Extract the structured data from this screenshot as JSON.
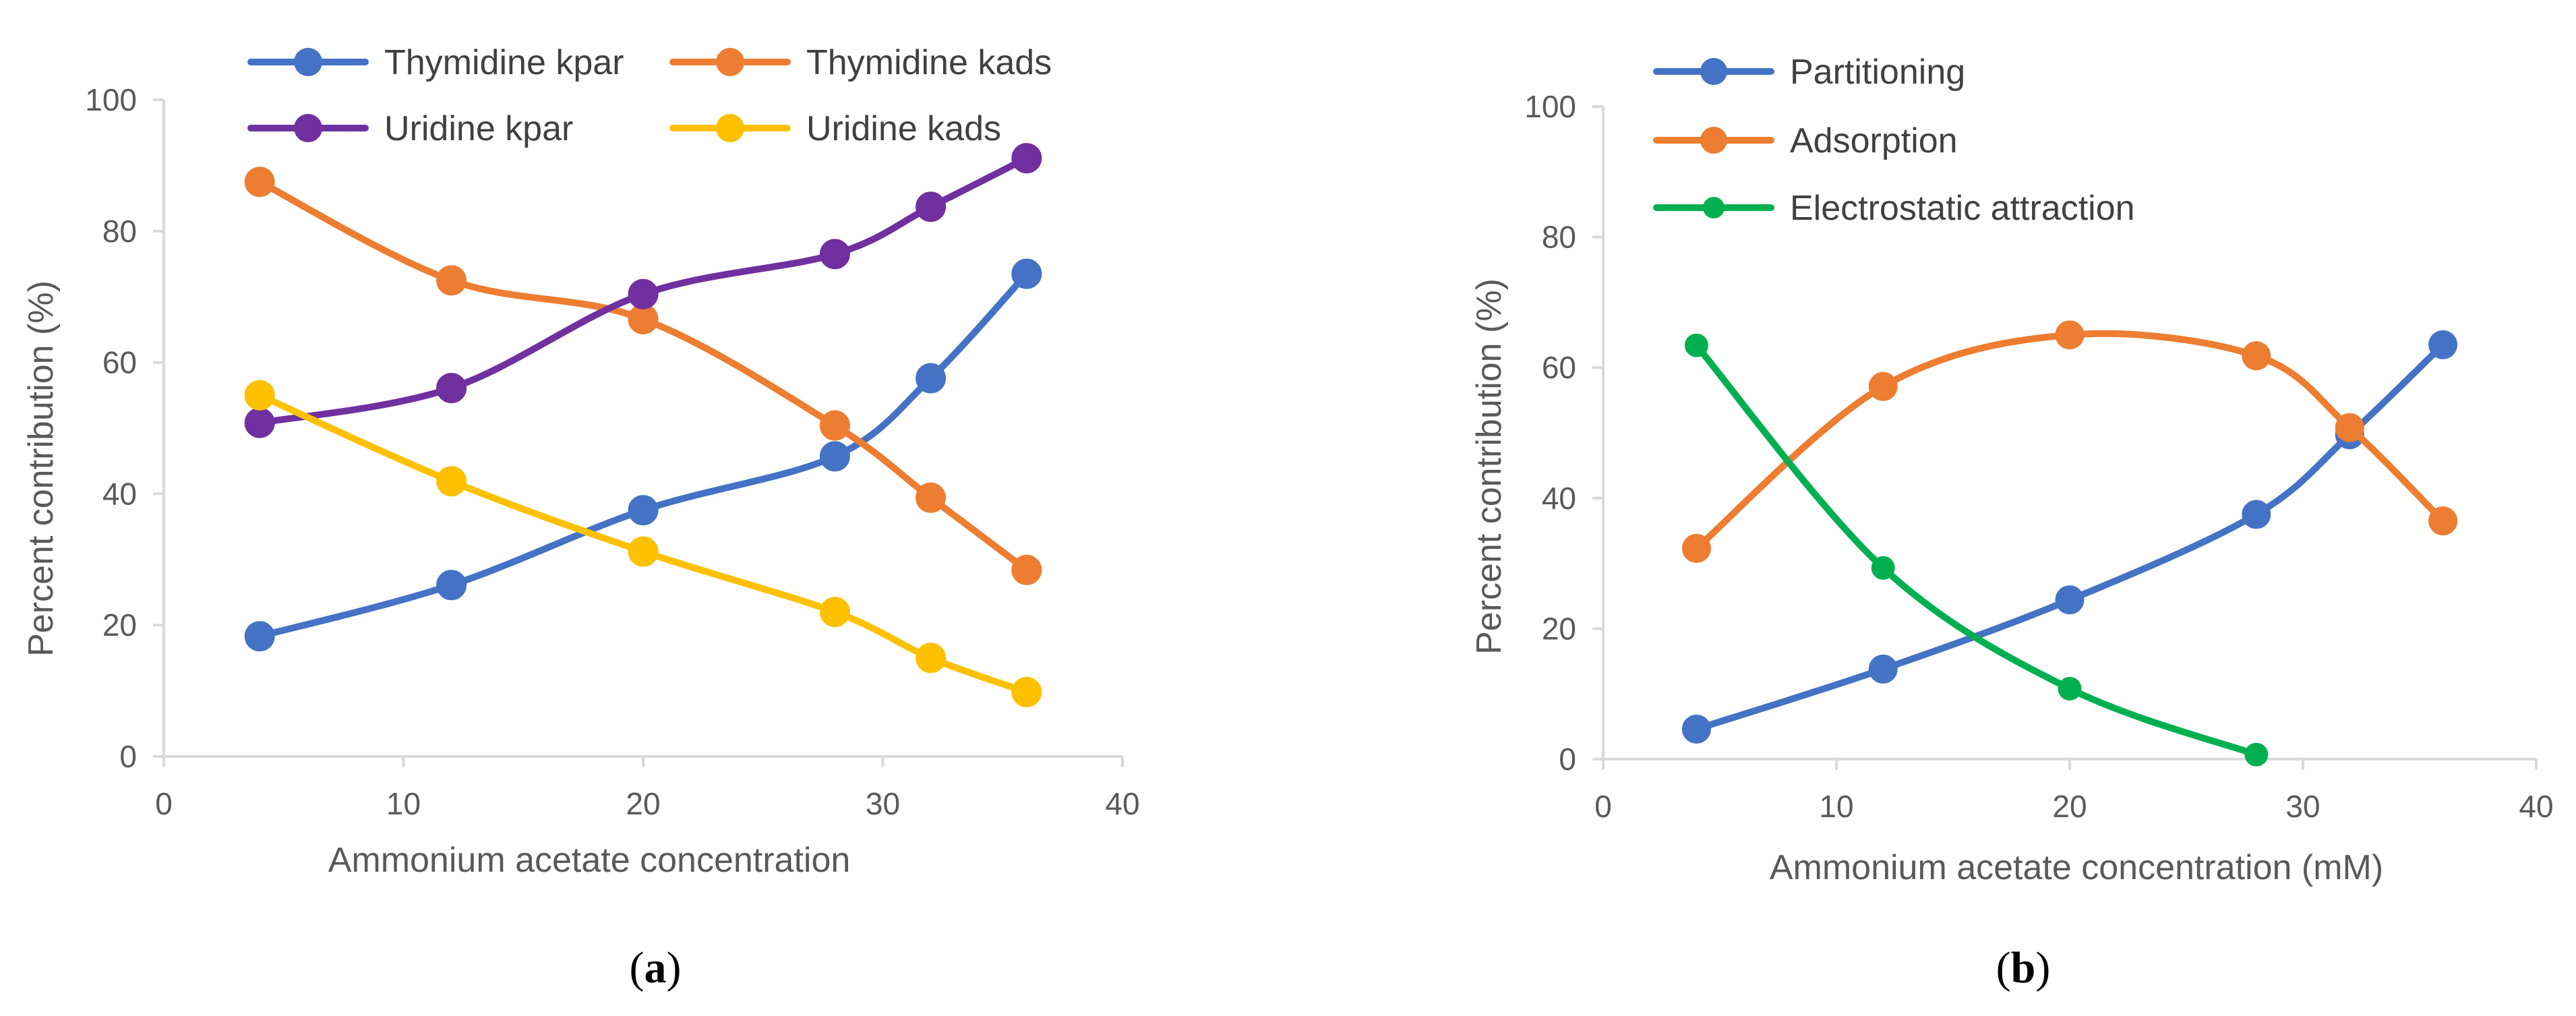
{
  "chart_data": [
    {
      "type": "line",
      "caption_letter": "a",
      "title": "",
      "xlabel": "Ammonium acetate concentration",
      "ylabel": "Percent contribution (%)",
      "xlim": [
        0,
        40
      ],
      "ylim": [
        0,
        100
      ],
      "xticks": [
        0,
        10,
        20,
        30,
        40
      ],
      "yticks": [
        0,
        20,
        40,
        60,
        80,
        100
      ],
      "grid": false,
      "legend_position": "top",
      "series": [
        {
          "name": "Thymidine kpar",
          "color": "#4472C4",
          "x": [
            4,
            12,
            20,
            28,
            32,
            36
          ],
          "y": [
            18.3,
            26.1,
            37.5,
            45.7,
            57.6,
            73.5
          ]
        },
        {
          "name": "Thymidine kads",
          "color": "#ED7D31",
          "x": [
            4,
            12,
            20,
            28,
            32,
            36
          ],
          "y": [
            87.5,
            72.5,
            66.6,
            50.4,
            39.4,
            28.4
          ]
        },
        {
          "name": "Uridine kpar",
          "color": "#7030A0",
          "x": [
            4,
            12,
            20,
            28,
            32,
            36
          ],
          "y": [
            50.8,
            56.1,
            70.4,
            76.5,
            83.7,
            91.1
          ]
        },
        {
          "name": "Uridine kads",
          "color": "#FFC000",
          "x": [
            4,
            12,
            20,
            28,
            32,
            36
          ],
          "y": [
            55.0,
            41.9,
            31.2,
            22.0,
            15.0,
            9.8
          ]
        }
      ]
    },
    {
      "type": "line",
      "caption_letter": "b",
      "title": "",
      "xlabel": "Ammonium acetate concentration (mM)",
      "ylabel": "Percent contribution (%)",
      "xlim": [
        0,
        40
      ],
      "ylim": [
        0,
        100
      ],
      "xticks": [
        0,
        10,
        20,
        30,
        40
      ],
      "yticks": [
        0,
        20,
        40,
        60,
        80,
        100
      ],
      "grid": false,
      "legend_position": "top-left",
      "series": [
        {
          "name": "Partitioning",
          "color": "#4472C4",
          "x": [
            4,
            12,
            20,
            28,
            32,
            36
          ],
          "y": [
            4.6,
            13.8,
            24.4,
            37.5,
            49.7,
            63.5
          ]
        },
        {
          "name": "Adsorption",
          "color": "#ED7D31",
          "x": [
            4,
            12,
            20,
            28,
            32,
            36
          ],
          "y": [
            32.3,
            57.1,
            65.0,
            61.8,
            50.8,
            36.5
          ]
        },
        {
          "name": "Electrostatic attraction",
          "color": "#00B050",
          "x": [
            4,
            12,
            20,
            28
          ],
          "y": [
            63.4,
            29.3,
            10.8,
            0.7
          ]
        }
      ]
    }
  ]
}
